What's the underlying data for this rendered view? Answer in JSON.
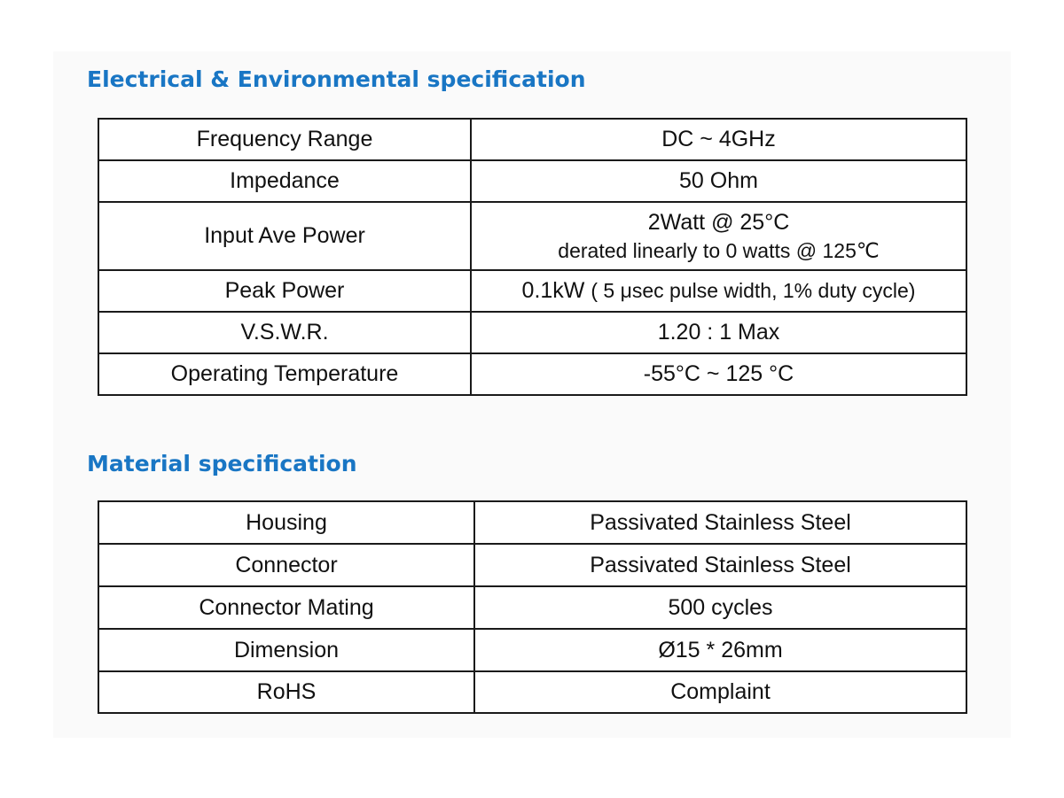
{
  "electrical": {
    "heading": "Electrical & Environmental specification",
    "rows": [
      {
        "label": "Frequency Range",
        "value": "DC ~ 4GHz"
      },
      {
        "label": "Impedance",
        "value": "50 Ohm"
      },
      {
        "label": "Input Ave Power",
        "value": "2Watt @ 25°C",
        "value_sub": "derated linearly to 0 watts @ 125℃"
      },
      {
        "label": "Peak Power",
        "value": "0.1kW",
        "value_note": "( 5 μsec pulse width, 1% duty cycle)"
      },
      {
        "label": "V.S.W.R.",
        "value": "1.20 : 1 Max"
      },
      {
        "label": "Operating Temperature",
        "value": "-55°C ~ 125 °C"
      }
    ]
  },
  "material": {
    "heading": "Material specification",
    "rows": [
      {
        "label": "Housing",
        "value": "Passivated Stainless Steel"
      },
      {
        "label": "Connector",
        "value": "Passivated Stainless Steel"
      },
      {
        "label": "Connector Mating",
        "value": "500 cycles"
      },
      {
        "label": "Dimension",
        "value": "Ø15 * 26mm"
      },
      {
        "label": "RoHS",
        "value": "Complaint"
      }
    ]
  },
  "colors": {
    "heading": "#1976c4",
    "text": "#111111",
    "border": "#1a1a1a"
  }
}
